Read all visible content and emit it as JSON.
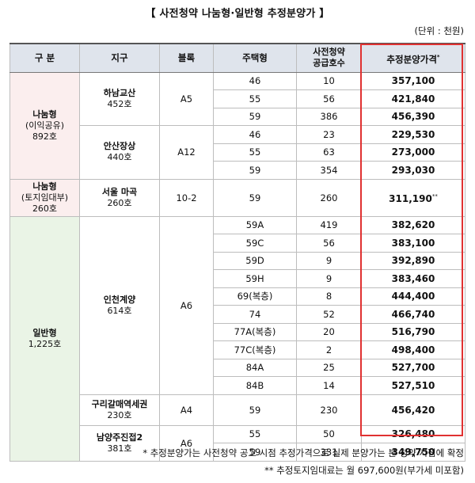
{
  "title": "【 사전청약 나눔형·일반형 추정분양가 】",
  "unit": "(단위 : 천원)",
  "headers": {
    "category": "구 분",
    "district": "지구",
    "block": "블록",
    "type": "주택형",
    "supply_line1": "사전청약",
    "supply_line2": "공급호수",
    "price": "추정분양가격",
    "price_mark": "*"
  },
  "categories": [
    {
      "name": "나눔형",
      "sub": "(이익공유)",
      "count": "892호"
    },
    {
      "name": "나눔형",
      "sub": "(토지임대부)",
      "count": "260호"
    },
    {
      "name": "일반형",
      "count": "1,225호"
    }
  ],
  "districts": [
    {
      "name": "하남교산",
      "count": "452호",
      "block": "A5"
    },
    {
      "name": "안산장상",
      "count": "440호",
      "block": "A12"
    },
    {
      "name": "서울 마곡",
      "count": "260호",
      "block": "10-2"
    },
    {
      "name": "인천계양",
      "count": "614호",
      "block": "A6"
    },
    {
      "name": "구리갈매역세권",
      "count": "230호",
      "block": "A4"
    },
    {
      "name": "남양주진접2",
      "count": "381호",
      "block": "A6"
    }
  ],
  "rows": [
    {
      "type": "46",
      "supply": "10",
      "price": "357,100"
    },
    {
      "type": "55",
      "supply": "56",
      "price": "421,840"
    },
    {
      "type": "59",
      "supply": "386",
      "price": "456,390"
    },
    {
      "type": "46",
      "supply": "23",
      "price": "229,530"
    },
    {
      "type": "55",
      "supply": "63",
      "price": "273,000"
    },
    {
      "type": "59",
      "supply": "354",
      "price": "293,030"
    },
    {
      "type": "59",
      "supply": "260",
      "price": "311,190",
      "mark": "**"
    },
    {
      "type": "59A",
      "supply": "419",
      "price": "382,620"
    },
    {
      "type": "59C",
      "supply": "56",
      "price": "383,100"
    },
    {
      "type": "59D",
      "supply": "9",
      "price": "392,890"
    },
    {
      "type": "59H",
      "supply": "9",
      "price": "383,460"
    },
    {
      "type": "69(복층)",
      "supply": "8",
      "price": "444,400"
    },
    {
      "type": "74",
      "supply": "52",
      "price": "466,740"
    },
    {
      "type": "77A(복층)",
      "supply": "20",
      "price": "516,790"
    },
    {
      "type": "77C(복층)",
      "supply": "2",
      "price": "498,400"
    },
    {
      "type": "84A",
      "supply": "25",
      "price": "527,700"
    },
    {
      "type": "84B",
      "supply": "14",
      "price": "527,510"
    },
    {
      "type": "59",
      "supply": "230",
      "price": "456,420"
    },
    {
      "type": "55",
      "supply": "50",
      "price": "326,480"
    },
    {
      "type": "59",
      "supply": "331",
      "price": "349,750"
    }
  ],
  "notes": [
    "* 추정분양가는 사전청약 공고 시점 추정가격으로 실제 분양가는 본 청약 시점에 확정",
    "** 추정토지임대료는 월 697,600원(부가세 미포함)"
  ],
  "colors": {
    "header_bg": "#dfe4ec",
    "pink_bg": "#fbeeee",
    "green_bg": "#eaf4e6",
    "highlight_border": "#e03131"
  }
}
